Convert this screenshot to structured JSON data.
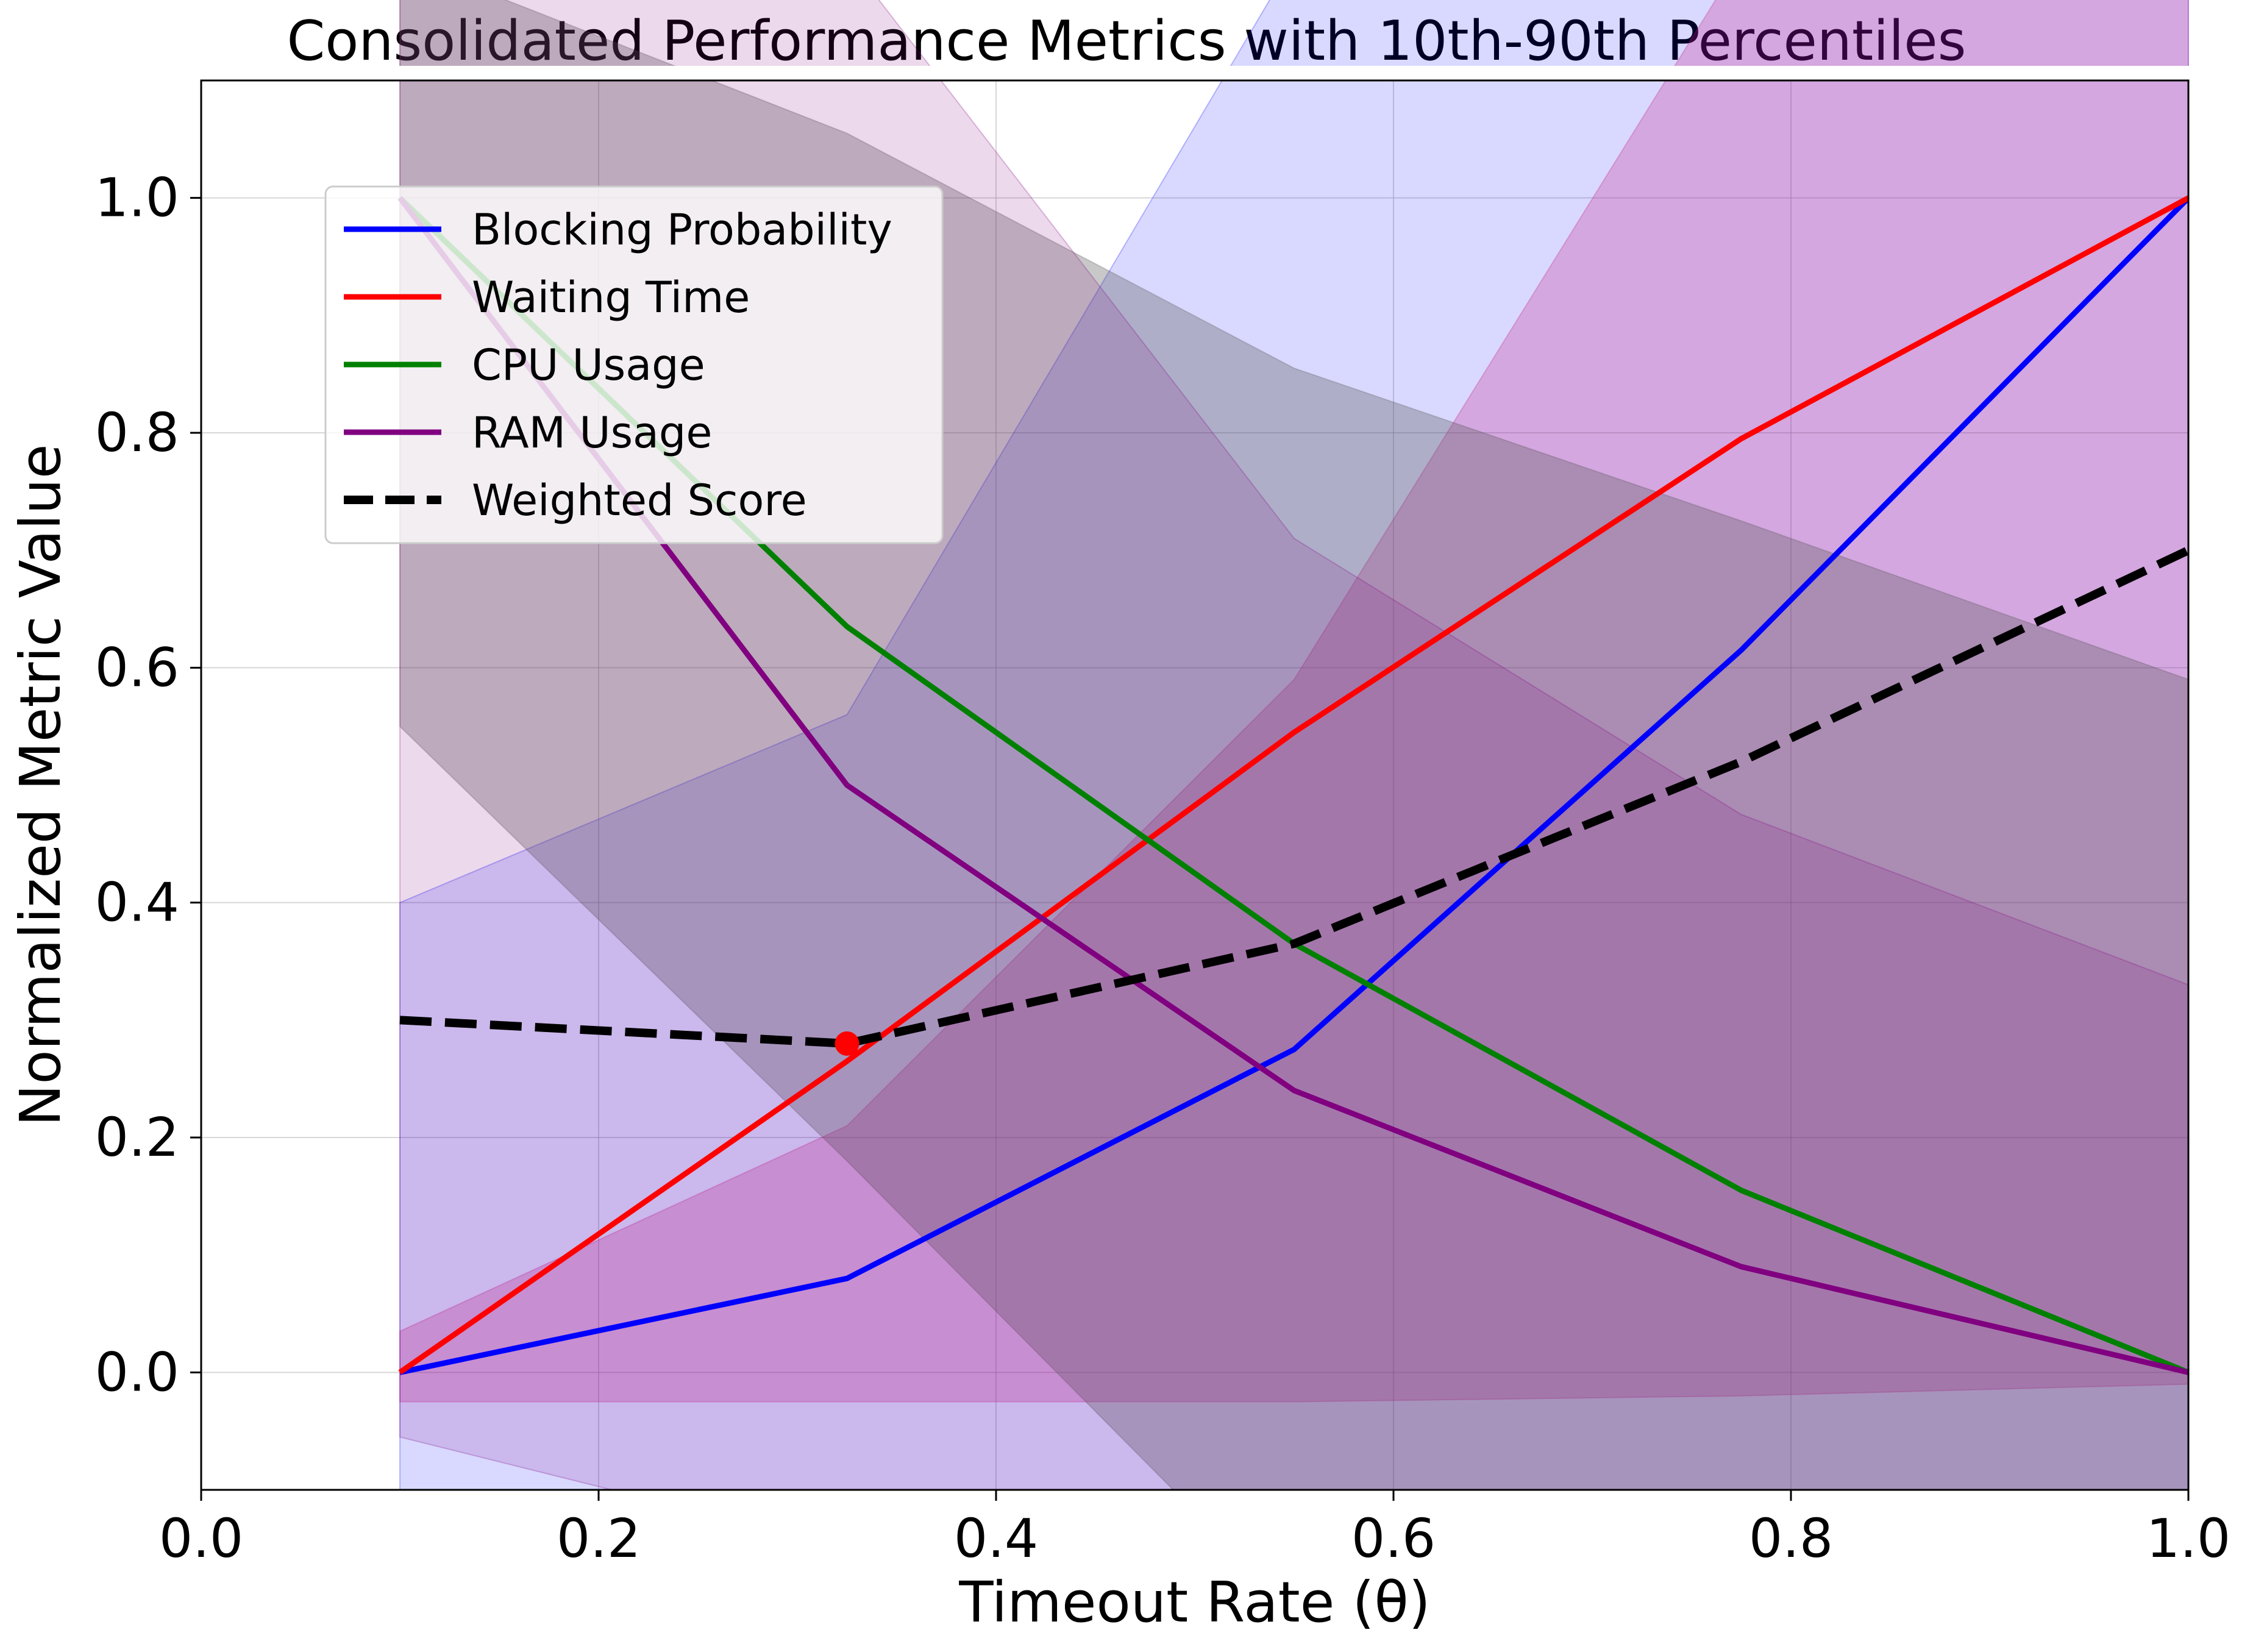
{
  "chart_data": {
    "type": "line",
    "title": "Consolidated Performance Metrics with 10th-90th Percentiles",
    "xlabel": "Timeout Rate (θ)",
    "ylabel": "Normalized Metric Value",
    "xlim": [
      0.0,
      1.0
    ],
    "ylim": [
      -0.1,
      1.1
    ],
    "xticks": [
      0.0,
      0.2,
      0.4,
      0.6,
      0.8,
      1.0
    ],
    "xtick_labels": [
      "0.0",
      "0.2",
      "0.4",
      "0.6",
      "0.8",
      "1.0"
    ],
    "yticks": [
      0.0,
      0.2,
      0.4,
      0.6,
      0.8,
      1.0
    ],
    "ytick_labels": [
      "0.0",
      "0.2",
      "0.4",
      "0.6",
      "0.8",
      "1.0"
    ],
    "grid": true,
    "legend_position": "upper-left",
    "x": [
      0.1,
      0.325,
      0.55,
      0.775,
      1.0
    ],
    "series": [
      {
        "name": "Blocking Probability",
        "color": "#0000ff",
        "line_style": "solid",
        "values": [
          0.0,
          0.08,
          0.275,
          0.615,
          1.0
        ],
        "band_10": [
          -0.55,
          -0.16,
          -0.3,
          -0.2,
          -0.1
        ],
        "band_90": [
          0.4,
          0.56,
          1.7,
          2.4,
          2.5
        ],
        "band_color": "#0000ff",
        "band_opacity": 0.15
      },
      {
        "name": "Waiting Time",
        "color": "#ff0000",
        "line_style": "solid",
        "values": [
          0.0,
          0.265,
          0.545,
          0.795,
          1.0
        ],
        "band_10": [
          -0.025,
          -0.025,
          -0.025,
          -0.02,
          -0.01
        ],
        "band_90": [
          0.035,
          0.21,
          0.59,
          1.5,
          2.0
        ],
        "band_color": "#c71585",
        "band_opacity": 0.25
      },
      {
        "name": "CPU Usage",
        "color": "#008000",
        "line_style": "solid",
        "values": [
          1.0,
          0.635,
          0.365,
          0.155,
          0.0
        ],
        "band_10": [
          0.55,
          0.18,
          -0.3,
          -0.4,
          -0.5
        ],
        "band_90": [
          1.5,
          1.055,
          0.855,
          0.725,
          0.59
        ],
        "band_color": "#555555",
        "band_opacity": 0.32
      },
      {
        "name": "RAM Usage",
        "color": "#800080",
        "line_style": "solid",
        "values": [
          1.0,
          0.5,
          0.24,
          0.09,
          0.0
        ],
        "band_10": [
          -0.055,
          -0.15,
          -0.3,
          -0.4,
          -0.5
        ],
        "band_90": [
          1.5,
          1.4,
          0.71,
          0.475,
          0.33
        ],
        "band_color": "#800080",
        "band_opacity": 0.15
      },
      {
        "name": "Weighted Score",
        "color": "#000000",
        "line_style": "dashed",
        "values": [
          0.3,
          0.28,
          0.365,
          0.52,
          0.7
        ]
      }
    ],
    "annotations": [
      {
        "type": "marker",
        "x": 0.325,
        "y": 0.28,
        "color": "#ff0000"
      }
    ]
  }
}
